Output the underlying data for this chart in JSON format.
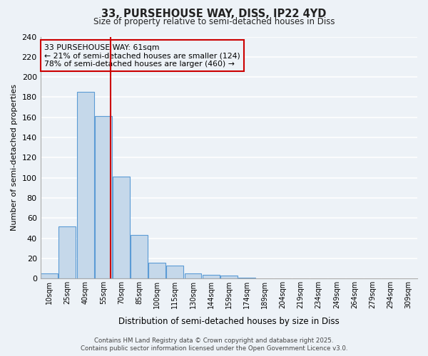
{
  "title": "33, PURSEHOUSE WAY, DISS, IP22 4YD",
  "subtitle": "Size of property relative to semi-detached houses in Diss",
  "xlabel": "Distribution of semi-detached houses by size in Diss",
  "ylabel": "Number of semi-detached properties",
  "bin_labels": [
    "10sqm",
    "25sqm",
    "40sqm",
    "55sqm",
    "70sqm",
    "85sqm",
    "100sqm",
    "115sqm",
    "130sqm",
    "144sqm",
    "159sqm",
    "174sqm",
    "189sqm",
    "204sqm",
    "219sqm",
    "234sqm",
    "249sqm",
    "264sqm",
    "279sqm",
    "294sqm",
    "309sqm"
  ],
  "bar_values": [
    5,
    52,
    185,
    161,
    101,
    43,
    16,
    13,
    5,
    4,
    3,
    1,
    0,
    0,
    0,
    0,
    0,
    0,
    0,
    0,
    0
  ],
  "bar_facecolor": "#c5d8ea",
  "bar_edgecolor": "#5b9bd5",
  "property_line_x": 3,
  "annotation_title": "33 PURSEHOUSE WAY: 61sqm",
  "annotation_line1": "← 21% of semi-detached houses are smaller (124)",
  "annotation_line2": "78% of semi-detached houses are larger (460) →",
  "annotation_box_color": "#cc0000",
  "vline_color": "#cc0000",
  "ylim": [
    0,
    240
  ],
  "yticks": [
    0,
    20,
    40,
    60,
    80,
    100,
    120,
    140,
    160,
    180,
    200,
    220,
    240
  ],
  "background_color": "#edf2f7",
  "grid_color": "#ffffff",
  "footer_line1": "Contains HM Land Registry data © Crown copyright and database right 2025.",
  "footer_line2": "Contains public sector information licensed under the Open Government Licence v3.0."
}
